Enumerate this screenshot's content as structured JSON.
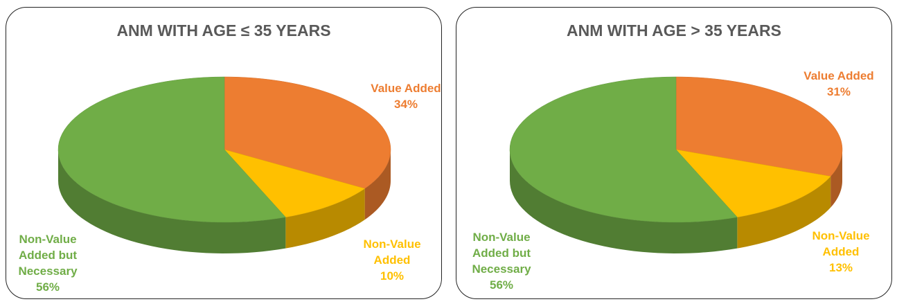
{
  "chart_data": [
    {
      "type": "pie",
      "title": "ANM WITH AGE ≤ 35 YEARS",
      "categories": [
        "Value Added",
        "Non-Value Added",
        "Non-Value Added but Necessary"
      ],
      "values": [
        34,
        10,
        56
      ],
      "value_labels": [
        "34%",
        "10%",
        "56%"
      ],
      "colors": [
        "#ED7D31",
        "#FFC000",
        "#70AD47"
      ]
    },
    {
      "type": "pie",
      "title": "ANM WITH AGE > 35 YEARS",
      "categories": [
        "Value Added",
        "Non-Value Added",
        "Non-Value Added but Necessary"
      ],
      "values": [
        31,
        13,
        56
      ],
      "value_labels": [
        "31%",
        "13%",
        "56%"
      ],
      "colors": [
        "#ED7D31",
        "#FFC000",
        "#70AD47"
      ]
    }
  ]
}
